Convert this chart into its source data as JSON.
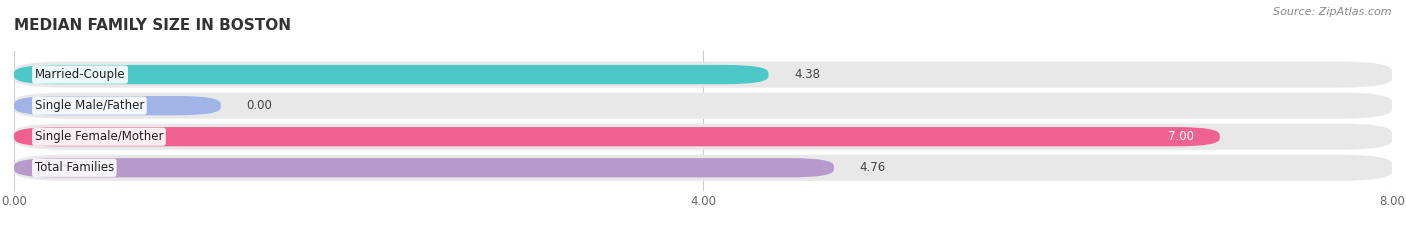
{
  "title": "MEDIAN FAMILY SIZE IN BOSTON",
  "source": "Source: ZipAtlas.com",
  "categories": [
    "Married-Couple",
    "Single Male/Father",
    "Single Female/Mother",
    "Total Families"
  ],
  "values": [
    4.38,
    0.0,
    7.0,
    4.76
  ],
  "bar_colors": [
    "#4dc8c8",
    "#a0b4e8",
    "#f06090",
    "#b899cc"
  ],
  "xlim": [
    0,
    8.0
  ],
  "xticks": [
    0.0,
    4.0,
    8.0
  ],
  "xtick_labels": [
    "0.00",
    "4.00",
    "8.00"
  ],
  "title_fontsize": 11,
  "label_fontsize": 8.5,
  "value_fontsize": 8.5,
  "background_color": "#ffffff",
  "bar_height": 0.62,
  "bar_bg_color": "#e8e8e8"
}
